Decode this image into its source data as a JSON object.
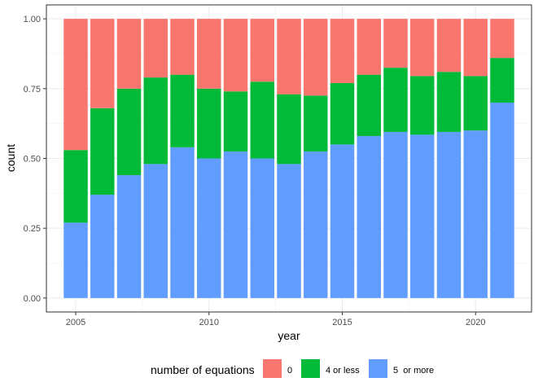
{
  "chart_data": {
    "type": "bar",
    "stacked": true,
    "x": [
      2005,
      2006,
      2007,
      2008,
      2009,
      2010,
      2011,
      2012,
      2013,
      2014,
      2015,
      2016,
      2017,
      2018,
      2019,
      2020,
      2021
    ],
    "series": [
      {
        "name": "5  or more",
        "color": "#619CFF",
        "values": [
          0.27,
          0.37,
          0.44,
          0.48,
          0.54,
          0.5,
          0.525,
          0.5,
          0.48,
          0.525,
          0.55,
          0.58,
          0.595,
          0.585,
          0.595,
          0.6,
          0.7
        ]
      },
      {
        "name": "4 or less",
        "color": "#00BA38",
        "values": [
          0.26,
          0.31,
          0.31,
          0.31,
          0.26,
          0.25,
          0.215,
          0.275,
          0.25,
          0.2,
          0.22,
          0.22,
          0.23,
          0.21,
          0.215,
          0.195,
          0.16
        ]
      },
      {
        "name": "0",
        "color": "#F8766D",
        "values": [
          0.47,
          0.32,
          0.25,
          0.21,
          0.2,
          0.25,
          0.26,
          0.225,
          0.27,
          0.275,
          0.23,
          0.2,
          0.175,
          0.205,
          0.19,
          0.205,
          0.14
        ]
      }
    ],
    "xlabel": "year",
    "ylabel": "count",
    "xlim": [
      2003.9,
      2022.1
    ],
    "ylim": [
      -0.05,
      1.05
    ],
    "x_ticks": [
      "2005",
      "2010",
      "2015",
      "2020"
    ],
    "x_tick_values": [
      2005,
      2010,
      2015,
      2020
    ],
    "y_ticks": [
      "0.00",
      "0.25",
      "0.50",
      "0.75",
      "1.00"
    ],
    "y_tick_values": [
      0,
      0.25,
      0.5,
      0.75,
      1.0
    ],
    "grid": true,
    "legend": {
      "title": "number of equations",
      "position": "bottom",
      "order": [
        "0",
        "4 or less",
        "5  or more"
      ]
    }
  }
}
